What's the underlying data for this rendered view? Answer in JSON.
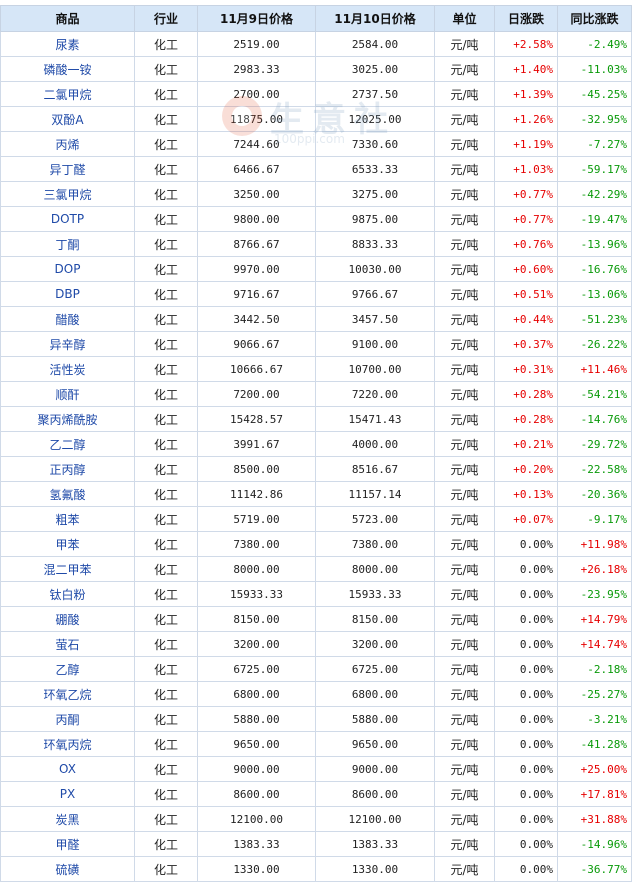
{
  "table": {
    "headers": [
      "商品",
      "行业",
      "11月9日价格",
      "11月10日价格",
      "单位",
      "日涨跌",
      "同比涨跌"
    ],
    "rows": [
      {
        "name": "尿素",
        "industry": "化工",
        "p9": "2519.00",
        "p10": "2584.00",
        "unit": "元/吨",
        "daily": "+2.58%",
        "yoy": "-2.49%"
      },
      {
        "name": "磷酸一铵",
        "industry": "化工",
        "p9": "2983.33",
        "p10": "3025.00",
        "unit": "元/吨",
        "daily": "+1.40%",
        "yoy": "-11.03%"
      },
      {
        "name": "二氯甲烷",
        "industry": "化工",
        "p9": "2700.00",
        "p10": "2737.50",
        "unit": "元/吨",
        "daily": "+1.39%",
        "yoy": "-45.25%"
      },
      {
        "name": "双酚A",
        "industry": "化工",
        "p9": "11875.00",
        "p10": "12025.00",
        "unit": "元/吨",
        "daily": "+1.26%",
        "yoy": "-32.95%"
      },
      {
        "name": "丙烯",
        "industry": "化工",
        "p9": "7244.60",
        "p10": "7330.60",
        "unit": "元/吨",
        "daily": "+1.19%",
        "yoy": "-7.27%"
      },
      {
        "name": "异丁醛",
        "industry": "化工",
        "p9": "6466.67",
        "p10": "6533.33",
        "unit": "元/吨",
        "daily": "+1.03%",
        "yoy": "-59.17%"
      },
      {
        "name": "三氯甲烷",
        "industry": "化工",
        "p9": "3250.00",
        "p10": "3275.00",
        "unit": "元/吨",
        "daily": "+0.77%",
        "yoy": "-42.29%"
      },
      {
        "name": "DOTP",
        "industry": "化工",
        "p9": "9800.00",
        "p10": "9875.00",
        "unit": "元/吨",
        "daily": "+0.77%",
        "yoy": "-19.47%"
      },
      {
        "name": "丁酮",
        "industry": "化工",
        "p9": "8766.67",
        "p10": "8833.33",
        "unit": "元/吨",
        "daily": "+0.76%",
        "yoy": "-13.96%"
      },
      {
        "name": "DOP",
        "industry": "化工",
        "p9": "9970.00",
        "p10": "10030.00",
        "unit": "元/吨",
        "daily": "+0.60%",
        "yoy": "-16.76%"
      },
      {
        "name": "DBP",
        "industry": "化工",
        "p9": "9716.67",
        "p10": "9766.67",
        "unit": "元/吨",
        "daily": "+0.51%",
        "yoy": "-13.06%"
      },
      {
        "name": "醋酸",
        "industry": "化工",
        "p9": "3442.50",
        "p10": "3457.50",
        "unit": "元/吨",
        "daily": "+0.44%",
        "yoy": "-51.23%"
      },
      {
        "name": "异辛醇",
        "industry": "化工",
        "p9": "9066.67",
        "p10": "9100.00",
        "unit": "元/吨",
        "daily": "+0.37%",
        "yoy": "-26.22%"
      },
      {
        "name": "活性炭",
        "industry": "化工",
        "p9": "10666.67",
        "p10": "10700.00",
        "unit": "元/吨",
        "daily": "+0.31%",
        "yoy": "+11.46%"
      },
      {
        "name": "顺酐",
        "industry": "化工",
        "p9": "7200.00",
        "p10": "7220.00",
        "unit": "元/吨",
        "daily": "+0.28%",
        "yoy": "-54.21%"
      },
      {
        "name": "聚丙烯酰胺",
        "industry": "化工",
        "p9": "15428.57",
        "p10": "15471.43",
        "unit": "元/吨",
        "daily": "+0.28%",
        "yoy": "-14.76%"
      },
      {
        "name": "乙二醇",
        "industry": "化工",
        "p9": "3991.67",
        "p10": "4000.00",
        "unit": "元/吨",
        "daily": "+0.21%",
        "yoy": "-29.72%"
      },
      {
        "name": "正丙醇",
        "industry": "化工",
        "p9": "8500.00",
        "p10": "8516.67",
        "unit": "元/吨",
        "daily": "+0.20%",
        "yoy": "-22.58%"
      },
      {
        "name": "氢氟酸",
        "industry": "化工",
        "p9": "11142.86",
        "p10": "11157.14",
        "unit": "元/吨",
        "daily": "+0.13%",
        "yoy": "-20.36%"
      },
      {
        "name": "粗苯",
        "industry": "化工",
        "p9": "5719.00",
        "p10": "5723.00",
        "unit": "元/吨",
        "daily": "+0.07%",
        "yoy": "-9.17%"
      },
      {
        "name": "甲苯",
        "industry": "化工",
        "p9": "7380.00",
        "p10": "7380.00",
        "unit": "元/吨",
        "daily": "0.00%",
        "yoy": "+11.98%"
      },
      {
        "name": "混二甲苯",
        "industry": "化工",
        "p9": "8000.00",
        "p10": "8000.00",
        "unit": "元/吨",
        "daily": "0.00%",
        "yoy": "+26.18%"
      },
      {
        "name": "钛白粉",
        "industry": "化工",
        "p9": "15933.33",
        "p10": "15933.33",
        "unit": "元/吨",
        "daily": "0.00%",
        "yoy": "-23.95%"
      },
      {
        "name": "硼酸",
        "industry": "化工",
        "p9": "8150.00",
        "p10": "8150.00",
        "unit": "元/吨",
        "daily": "0.00%",
        "yoy": "+14.79%"
      },
      {
        "name": "萤石",
        "industry": "化工",
        "p9": "3200.00",
        "p10": "3200.00",
        "unit": "元/吨",
        "daily": "0.00%",
        "yoy": "+14.74%"
      },
      {
        "name": "乙醇",
        "industry": "化工",
        "p9": "6725.00",
        "p10": "6725.00",
        "unit": "元/吨",
        "daily": "0.00%",
        "yoy": "-2.18%"
      },
      {
        "name": "环氧乙烷",
        "industry": "化工",
        "p9": "6800.00",
        "p10": "6800.00",
        "unit": "元/吨",
        "daily": "0.00%",
        "yoy": "-25.27%"
      },
      {
        "name": "丙酮",
        "industry": "化工",
        "p9": "5880.00",
        "p10": "5880.00",
        "unit": "元/吨",
        "daily": "0.00%",
        "yoy": "-3.21%"
      },
      {
        "name": "环氧丙烷",
        "industry": "化工",
        "p9": "9650.00",
        "p10": "9650.00",
        "unit": "元/吨",
        "daily": "0.00%",
        "yoy": "-41.28%"
      },
      {
        "name": "OX",
        "industry": "化工",
        "p9": "9000.00",
        "p10": "9000.00",
        "unit": "元/吨",
        "daily": "0.00%",
        "yoy": "+25.00%"
      },
      {
        "name": "PX",
        "industry": "化工",
        "p9": "8600.00",
        "p10": "8600.00",
        "unit": "元/吨",
        "daily": "0.00%",
        "yoy": "+17.81%"
      },
      {
        "name": "炭黑",
        "industry": "化工",
        "p9": "12100.00",
        "p10": "12100.00",
        "unit": "元/吨",
        "daily": "0.00%",
        "yoy": "+31.88%"
      },
      {
        "name": "甲醛",
        "industry": "化工",
        "p9": "1383.33",
        "p10": "1383.33",
        "unit": "元/吨",
        "daily": "0.00%",
        "yoy": "-14.96%"
      },
      {
        "name": "硫磺",
        "industry": "化工",
        "p9": "1330.00",
        "p10": "1330.00",
        "unit": "元/吨",
        "daily": "0.00%",
        "yoy": "-36.77%"
      }
    ]
  },
  "watermark": {
    "brand": "生意社",
    "url": "100ppi.com"
  },
  "colors": {
    "header_bg": "#d6e6f7",
    "up": "#e60000",
    "down": "#0a9a0a",
    "name_link": "#1f4aa8",
    "border": "#d0dae8"
  }
}
